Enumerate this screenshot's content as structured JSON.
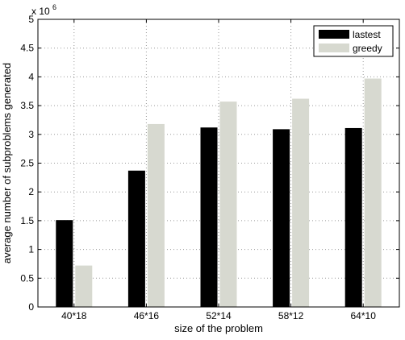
{
  "chart_data": {
    "type": "bar",
    "categories": [
      "40*18",
      "46*16",
      "52*14",
      "58*12",
      "64*10"
    ],
    "series": [
      {
        "name": "lastest",
        "values": [
          1.51,
          2.37,
          3.12,
          3.09,
          3.11
        ],
        "color": "#000000"
      },
      {
        "name": "greedy",
        "values": [
          0.72,
          3.18,
          3.57,
          3.62,
          3.97
        ],
        "color": "#d7d9d0"
      }
    ],
    "xlabel": "size of the problem",
    "ylabel": "average number of subproblems generated",
    "ylim": [
      0,
      5
    ],
    "yticks": [
      0,
      0.5,
      1,
      1.5,
      2,
      2.5,
      3,
      3.5,
      4,
      4.5,
      5
    ],
    "ytick_labels": [
      "0",
      "0.5",
      "1",
      "1.5",
      "2",
      "2.5",
      "3",
      "3.5",
      "4",
      "4.5",
      "5"
    ],
    "scale_base": "x 10",
    "scale_exponent": "6",
    "grid": true,
    "legend_position": "top-right"
  }
}
